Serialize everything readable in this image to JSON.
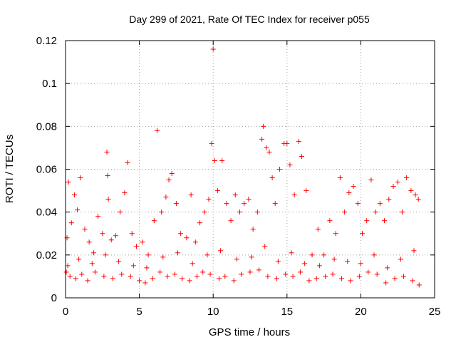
{
  "chart_data": {
    "type": "scatter",
    "title": "Day 299 of 2021, Rate Of TEC Index for receiver p055",
    "xlabel": "GPS time / hours",
    "ylabel": "ROTI / TECUs",
    "xlim": [
      0,
      25
    ],
    "ylim": [
      0,
      0.12
    ],
    "x_ticks": [
      0,
      5,
      10,
      15,
      20,
      25
    ],
    "x_tick_labels": [
      "0",
      "5",
      "10",
      "15",
      "20",
      "25"
    ],
    "y_ticks": [
      0,
      0.02,
      0.04,
      0.06,
      0.08,
      0.1,
      0.12
    ],
    "y_tick_labels": [
      "0",
      "0.02",
      "0.04",
      "0.06",
      "0.08",
      "0.1",
      "0.12"
    ],
    "grid": true,
    "marker": "+",
    "marker_color": "#ff0000",
    "series": [
      {
        "x": [
          0.1,
          0.2,
          0.4,
          0.6,
          0.8,
          1.0,
          1.3,
          1.6,
          1.9,
          2.2,
          2.5,
          2.8,
          2.85,
          2.9,
          3.1,
          3.4,
          3.7,
          4.0,
          4.2,
          4.5,
          4.8,
          5.2,
          5.6,
          6.0,
          6.2,
          6.5,
          6.8,
          7.0,
          7.2,
          7.5,
          7.8,
          8.2,
          8.5,
          8.8,
          9.1,
          9.4,
          9.7,
          9.9,
          10.0,
          10.1,
          10.3,
          10.6,
          10.9,
          11.2,
          11.5,
          11.8,
          12.1,
          12.4,
          12.7,
          13.0,
          13.3,
          13.4,
          13.6,
          13.8,
          14.0,
          14.2,
          14.5,
          14.8,
          15.0,
          15.2,
          15.5,
          15.8,
          16.0,
          16.3,
          16.7,
          17.1,
          17.5,
          17.9,
          18.3,
          18.6,
          18.9,
          19.2,
          19.5,
          19.8,
          20.1,
          20.4,
          20.7,
          21.0,
          21.3,
          21.6,
          21.9,
          22.2,
          22.5,
          22.8,
          23.1,
          23.4,
          23.7,
          23.9,
          0.05,
          0.3,
          0.7,
          1.1,
          1.5,
          2.0,
          2.6,
          3.2,
          3.8,
          4.4,
          5.0,
          5.4,
          5.9,
          6.4,
          6.9,
          7.4,
          7.9,
          8.4,
          8.9,
          9.3,
          9.8,
          10.4,
          10.8,
          11.4,
          11.9,
          12.5,
          13.1,
          13.7,
          14.3,
          14.9,
          15.4,
          15.9,
          16.5,
          17.0,
          17.6,
          18.1,
          18.7,
          19.3,
          19.9,
          20.5,
          21.1,
          21.7,
          22.3,
          22.9,
          23.5,
          23.95,
          0.15,
          0.9,
          1.8,
          2.7,
          3.6,
          4.6,
          5.5,
          6.6,
          7.6,
          8.6,
          9.6,
          10.5,
          11.6,
          12.6,
          13.5,
          14.4,
          15.3,
          16.2,
          17.2,
          18.2,
          19.1,
          20.0,
          20.9,
          21.8,
          22.7,
          23.6
        ],
        "y": [
          0.028,
          0.054,
          0.035,
          0.048,
          0.041,
          0.056,
          0.032,
          0.026,
          0.021,
          0.038,
          0.03,
          0.068,
          0.057,
          0.046,
          0.027,
          0.029,
          0.04,
          0.049,
          0.063,
          0.03,
          0.024,
          0.026,
          0.02,
          0.036,
          0.078,
          0.04,
          0.047,
          0.055,
          0.058,
          0.044,
          0.03,
          0.028,
          0.048,
          0.026,
          0.035,
          0.04,
          0.046,
          0.072,
          0.116,
          0.064,
          0.05,
          0.064,
          0.044,
          0.036,
          0.048,
          0.04,
          0.044,
          0.046,
          0.032,
          0.04,
          0.074,
          0.08,
          0.07,
          0.068,
          0.056,
          0.044,
          0.06,
          0.072,
          0.072,
          0.062,
          0.048,
          0.073,
          0.066,
          0.05,
          0.02,
          0.032,
          0.02,
          0.036,
          0.03,
          0.056,
          0.04,
          0.049,
          0.052,
          0.044,
          0.03,
          0.036,
          0.055,
          0.04,
          0.044,
          0.036,
          0.046,
          0.052,
          0.054,
          0.04,
          0.056,
          0.05,
          0.048,
          0.046,
          0.012,
          0.01,
          0.009,
          0.011,
          0.008,
          0.012,
          0.01,
          0.009,
          0.011,
          0.01,
          0.008,
          0.007,
          0.009,
          0.012,
          0.01,
          0.011,
          0.009,
          0.008,
          0.01,
          0.012,
          0.011,
          0.009,
          0.01,
          0.008,
          0.011,
          0.012,
          0.013,
          0.01,
          0.009,
          0.011,
          0.01,
          0.012,
          0.008,
          0.009,
          0.01,
          0.011,
          0.009,
          0.008,
          0.01,
          0.012,
          0.011,
          0.007,
          0.009,
          0.01,
          0.008,
          0.006,
          0.015,
          0.018,
          0.016,
          0.02,
          0.017,
          0.015,
          0.014,
          0.019,
          0.021,
          0.016,
          0.02,
          0.022,
          0.018,
          0.019,
          0.024,
          0.017,
          0.021,
          0.016,
          0.015,
          0.018,
          0.017,
          0.016,
          0.02,
          0.014,
          0.018,
          0.022
        ]
      }
    ]
  }
}
